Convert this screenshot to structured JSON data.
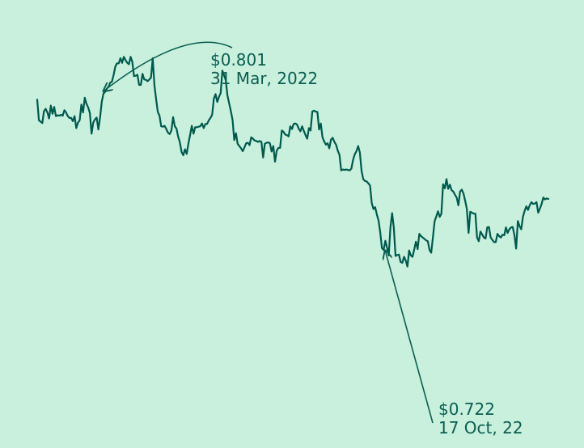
{
  "colors": {
    "background": "#c8f0dc",
    "line": "#00594e",
    "annotation": "#0b5e52"
  },
  "chart_data": {
    "type": "line",
    "title": "",
    "xlabel": "",
    "ylabel": "",
    "grid": false,
    "ylim": [
      0.717,
      0.806
    ],
    "series": [
      {
        "values": [
          0.7875,
          0.783,
          0.7827,
          0.7824,
          0.785,
          0.7855,
          0.7847,
          0.7834,
          0.7862,
          0.7844,
          0.7859,
          0.7839,
          0.7841,
          0.784,
          0.7842,
          0.784,
          0.7852,
          0.7847,
          0.7839,
          0.7835,
          0.7835,
          0.7828,
          0.7839,
          0.7813,
          0.7825,
          0.783,
          0.7864,
          0.7847,
          0.7879,
          0.7866,
          0.7858,
          0.7846,
          0.7801,
          0.7825,
          0.7832,
          0.7836,
          0.781,
          0.7836,
          0.787,
          0.7888,
          0.7892,
          0.7899,
          0.7903,
          0.7912,
          0.7914,
          0.7929,
          0.7947,
          0.7954,
          0.7954,
          0.7965,
          0.7955,
          0.7968,
          0.7961,
          0.7955,
          0.7952,
          0.7968,
          0.7957,
          0.7926,
          0.7927,
          0.7929,
          0.7907,
          0.7907,
          0.7931,
          0.7919,
          0.7918,
          0.7915,
          0.7919,
          0.7923,
          0.7965,
          0.7907,
          0.7876,
          0.7848,
          0.784,
          0.7817,
          0.7816,
          0.7818,
          0.7811,
          0.7803,
          0.78,
          0.7808,
          0.7837,
          0.7817,
          0.7812,
          0.7794,
          0.7782,
          0.7761,
          0.7754,
          0.7767,
          0.7757,
          0.7779,
          0.7798,
          0.7818,
          0.7801,
          0.7815,
          0.7815,
          0.7816,
          0.7817,
          0.7823,
          0.7813,
          0.7822,
          0.7822,
          0.783,
          0.7835,
          0.7842,
          0.7877,
          0.7887,
          0.787,
          0.7881,
          0.7889,
          0.7938,
          0.7928,
          0.7917,
          0.7884,
          0.7867,
          0.785,
          0.7831,
          0.7787,
          0.7802,
          0.7779,
          0.7774,
          0.7769,
          0.7763,
          0.7771,
          0.778,
          0.7781,
          0.7776,
          0.7793,
          0.779,
          0.7786,
          0.7785,
          0.7783,
          0.7785,
          0.7783,
          0.7749,
          0.7779,
          0.7781,
          0.7782,
          0.778,
          0.7762,
          0.7774,
          0.774,
          0.7764,
          0.777,
          0.777,
          0.7808,
          0.7805,
          0.7799,
          0.7798,
          0.7795,
          0.7817,
          0.7811,
          0.7822,
          0.7823,
          0.7821,
          0.7812,
          0.7806,
          0.7817,
          0.7807,
          0.7798,
          0.779,
          0.7813,
          0.7808,
          0.7849,
          0.7851,
          0.7849,
          0.7848,
          0.781,
          0.7823,
          0.7793,
          0.7784,
          0.7777,
          0.778,
          0.7769,
          0.7788,
          0.7792,
          0.7783,
          0.7777,
          0.7764,
          0.7755,
          0.7721,
          0.7723,
          0.7722,
          0.7723,
          0.7722,
          0.7721,
          0.7725,
          0.7744,
          0.7756,
          0.7763,
          0.7774,
          0.776,
          0.772,
          0.7702,
          0.7698,
          0.7697,
          0.7693,
          0.7688,
          0.765,
          0.7637,
          0.7641,
          0.7625,
          0.7612,
          0.7586,
          0.7552,
          0.7548,
          0.7568,
          0.7553,
          0.7536,
          0.7598,
          0.7628,
          0.7596,
          0.7535,
          0.7537,
          0.7538,
          0.7522,
          0.752,
          0.7533,
          0.7525,
          0.7512,
          0.7547,
          0.7536,
          0.7533,
          0.7549,
          0.7566,
          0.755,
          0.7583,
          0.7578,
          0.7575,
          0.7572,
          0.7569,
          0.7567,
          0.7548,
          0.7542,
          0.7575,
          0.761,
          0.7621,
          0.7632,
          0.762,
          0.7627,
          0.7691,
          0.7682,
          0.7702,
          0.7681,
          0.769,
          0.7678,
          0.7675,
          0.7668,
          0.7662,
          0.7645,
          0.7675,
          0.7679,
          0.7671,
          0.7655,
          0.7637,
          0.7585,
          0.7631,
          0.7629,
          0.7627,
          0.7627,
          0.7575,
          0.7567,
          0.7588,
          0.7582,
          0.7575,
          0.7573,
          0.7597,
          0.7598,
          0.7575,
          0.757,
          0.7565,
          0.7565,
          0.7583,
          0.7578,
          0.7575,
          0.7581,
          0.758,
          0.7597,
          0.7585,
          0.7593,
          0.7597,
          0.7598,
          0.758,
          0.7551,
          0.7611,
          0.76,
          0.7593,
          0.762,
          0.7633,
          0.7643,
          0.7635,
          0.7645,
          0.7652,
          0.7648,
          0.7649,
          0.7652,
          0.7629,
          0.7638,
          0.7648,
          0.7662,
          0.7658,
          0.766,
          0.7659
        ]
      }
    ],
    "annotations": [
      {
        "point_index": 39,
        "label_price": "$0.801",
        "label_date": "31 Mar, 2022"
      },
      {
        "point_index": 203,
        "label_price": "$0.722",
        "label_date": "17 Oct, 22"
      }
    ]
  }
}
